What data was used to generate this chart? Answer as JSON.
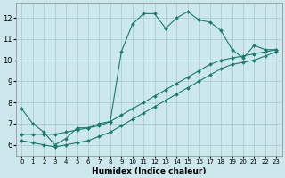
{
  "xlabel": "Humidex (Indice chaleur)",
  "bg_color": "#cce8ec",
  "grid_color": "#aacdd4",
  "line_color": "#1a7a6e",
  "xlim": [
    -0.5,
    23.5
  ],
  "ylim": [
    5.5,
    12.7
  ],
  "xticks": [
    0,
    1,
    2,
    3,
    4,
    5,
    6,
    7,
    8,
    9,
    10,
    11,
    12,
    13,
    14,
    15,
    16,
    17,
    18,
    19,
    20,
    21,
    22,
    23
  ],
  "yticks": [
    6,
    7,
    8,
    9,
    10,
    11,
    12
  ],
  "line1_x": [
    0,
    1,
    2,
    3,
    4,
    5,
    6,
    7,
    8,
    9,
    10,
    11,
    12,
    13,
    14,
    15,
    16,
    17,
    18,
    19,
    20,
    21,
    22,
    23
  ],
  "line1_y": [
    7.7,
    7.0,
    6.6,
    6.0,
    6.3,
    6.8,
    6.8,
    7.0,
    7.1,
    10.4,
    11.7,
    12.2,
    12.2,
    11.5,
    12.0,
    12.3,
    11.9,
    11.8,
    11.4,
    10.5,
    10.1,
    10.7,
    10.5,
    10.5
  ],
  "line2_x": [
    0,
    1,
    2,
    3,
    4,
    5,
    6,
    7,
    8,
    9,
    10,
    11,
    12,
    13,
    14,
    15,
    16,
    17,
    18,
    19,
    20,
    21,
    22,
    23
  ],
  "line2_y": [
    6.5,
    6.5,
    6.5,
    6.5,
    6.6,
    6.7,
    6.8,
    6.9,
    7.1,
    7.4,
    7.7,
    8.0,
    8.3,
    8.6,
    8.9,
    9.2,
    9.5,
    9.8,
    10.0,
    10.1,
    10.2,
    10.3,
    10.4,
    10.5
  ],
  "line3_x": [
    0,
    1,
    2,
    3,
    4,
    5,
    6,
    7,
    8,
    9,
    10,
    11,
    12,
    13,
    14,
    15,
    16,
    17,
    18,
    19,
    20,
    21,
    22,
    23
  ],
  "line3_y": [
    6.2,
    6.1,
    6.0,
    5.9,
    6.0,
    6.1,
    6.2,
    6.4,
    6.6,
    6.9,
    7.2,
    7.5,
    7.8,
    8.1,
    8.4,
    8.7,
    9.0,
    9.3,
    9.6,
    9.8,
    9.9,
    10.0,
    10.2,
    10.4
  ]
}
